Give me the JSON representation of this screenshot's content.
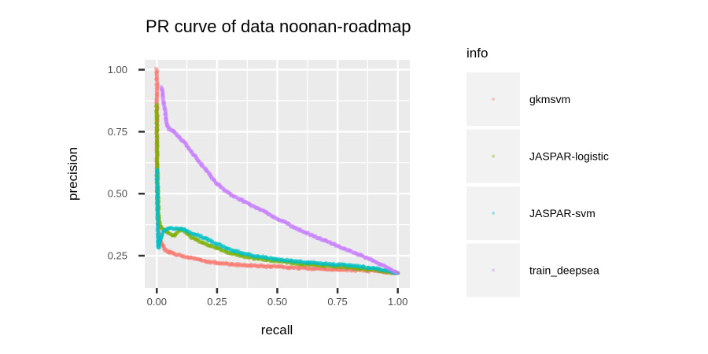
{
  "chart_data": {
    "type": "scatter",
    "title": "PR curve of data noonan-roadmap",
    "xlabel": "recall",
    "ylabel": "precision",
    "xlim": [
      -0.05,
      1.05
    ],
    "ylim": [
      0.12,
      1.04
    ],
    "xticks": [
      0.0,
      0.25,
      0.5,
      0.75,
      1.0
    ],
    "xtick_labels": [
      "0.00",
      "0.25",
      "0.50",
      "0.75",
      "1.00"
    ],
    "yticks": [
      0.25,
      0.5,
      0.75,
      1.0
    ],
    "ytick_labels": [
      "0.25",
      "0.50",
      "0.75",
      "1.00"
    ],
    "grid": true,
    "legend": {
      "title": "info",
      "position": "right"
    },
    "series": [
      {
        "name": "gkmsvm",
        "color": "#F8766D",
        "points": [
          [
            0.0,
            1.0
          ],
          [
            0.002,
            0.5
          ],
          [
            0.004,
            0.42
          ],
          [
            0.006,
            0.38
          ],
          [
            0.008,
            0.34
          ],
          [
            0.01,
            0.3
          ],
          [
            0.015,
            0.31
          ],
          [
            0.02,
            0.3
          ],
          [
            0.03,
            0.28
          ],
          [
            0.04,
            0.27
          ],
          [
            0.05,
            0.265
          ],
          [
            0.07,
            0.258
          ],
          [
            0.1,
            0.25
          ],
          [
            0.15,
            0.24
          ],
          [
            0.2,
            0.228
          ],
          [
            0.3,
            0.215
          ],
          [
            0.4,
            0.21
          ],
          [
            0.5,
            0.205
          ],
          [
            0.6,
            0.2
          ],
          [
            0.7,
            0.197
          ],
          [
            0.8,
            0.193
          ],
          [
            0.9,
            0.188
          ],
          [
            1.0,
            0.18
          ]
        ]
      },
      {
        "name": "JASPAR-logistic",
        "color": "#7CAE00",
        "points": [
          [
            0.0,
            0.86
          ],
          [
            0.001,
            0.68
          ],
          [
            0.002,
            0.6
          ],
          [
            0.004,
            0.52
          ],
          [
            0.006,
            0.45
          ],
          [
            0.008,
            0.4
          ],
          [
            0.01,
            0.38
          ],
          [
            0.02,
            0.36
          ],
          [
            0.03,
            0.35
          ],
          [
            0.05,
            0.34
          ],
          [
            0.07,
            0.33
          ],
          [
            0.1,
            0.36
          ],
          [
            0.15,
            0.32
          ],
          [
            0.2,
            0.3
          ],
          [
            0.3,
            0.26
          ],
          [
            0.4,
            0.24
          ],
          [
            0.5,
            0.228
          ],
          [
            0.6,
            0.217
          ],
          [
            0.7,
            0.209
          ],
          [
            0.8,
            0.202
          ],
          [
            0.9,
            0.193
          ],
          [
            1.0,
            0.18
          ]
        ]
      },
      {
        "name": "JASPAR-svm",
        "color": "#00BFC4",
        "points": [
          [
            0.0,
            0.6
          ],
          [
            0.001,
            0.55
          ],
          [
            0.002,
            0.5
          ],
          [
            0.003,
            0.45
          ],
          [
            0.005,
            0.3
          ],
          [
            0.008,
            0.28
          ],
          [
            0.01,
            0.3
          ],
          [
            0.02,
            0.33
          ],
          [
            0.03,
            0.35
          ],
          [
            0.05,
            0.36
          ],
          [
            0.1,
            0.36
          ],
          [
            0.15,
            0.34
          ],
          [
            0.2,
            0.32
          ],
          [
            0.3,
            0.275
          ],
          [
            0.4,
            0.25
          ],
          [
            0.5,
            0.235
          ],
          [
            0.6,
            0.225
          ],
          [
            0.7,
            0.217
          ],
          [
            0.8,
            0.21
          ],
          [
            0.9,
            0.2
          ],
          [
            1.0,
            0.18
          ]
        ]
      },
      {
        "name": "train_deepsea",
        "color": "#C77CFF",
        "points": [
          [
            0.02,
            0.93
          ],
          [
            0.03,
            0.86
          ],
          [
            0.04,
            0.79
          ],
          [
            0.05,
            0.76
          ],
          [
            0.07,
            0.75
          ],
          [
            0.1,
            0.72
          ],
          [
            0.12,
            0.7
          ],
          [
            0.15,
            0.66
          ],
          [
            0.2,
            0.6
          ],
          [
            0.25,
            0.54
          ],
          [
            0.3,
            0.5
          ],
          [
            0.4,
            0.45
          ],
          [
            0.5,
            0.4
          ],
          [
            0.6,
            0.35
          ],
          [
            0.7,
            0.31
          ],
          [
            0.8,
            0.27
          ],
          [
            0.9,
            0.23
          ],
          [
            1.0,
            0.18
          ]
        ]
      }
    ]
  }
}
